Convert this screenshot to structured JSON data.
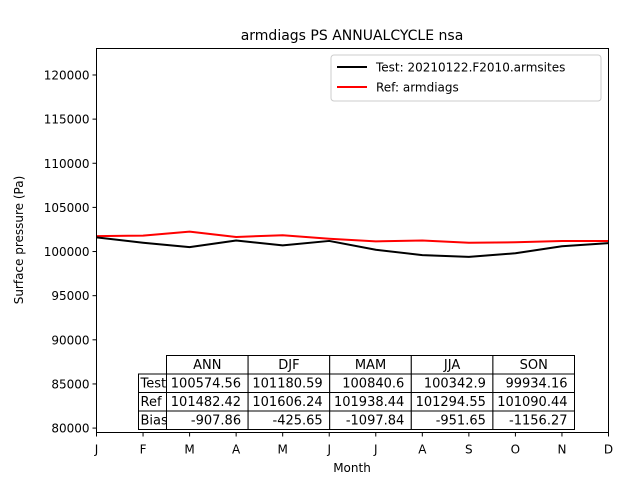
{
  "chart_data": {
    "type": "line",
    "title": "armdiags PS ANNUALCYCLE nsa",
    "xlabel": "Month",
    "ylabel": "Surface pressure (Pa)",
    "categories": [
      "J",
      "F",
      "M",
      "A",
      "M",
      "J",
      "J",
      "A",
      "S",
      "O",
      "N",
      "D"
    ],
    "ylim": [
      79500,
      123000
    ],
    "yticks": [
      80000,
      85000,
      90000,
      95000,
      100000,
      105000,
      110000,
      115000,
      120000
    ],
    "grid": false,
    "legend_position": "top-right",
    "series": [
      {
        "name": "Test: 20210122.F2010.armsites",
        "color": "#000000",
        "values": [
          101600,
          101000,
          100500,
          101250,
          100700,
          101200,
          100200,
          99600,
          99400,
          99800,
          100600,
          100950
        ]
      },
      {
        "name": "Ref: armdiags",
        "color": "#ff0000",
        "values": [
          101750,
          101800,
          102250,
          101650,
          101850,
          101450,
          101150,
          101250,
          101000,
          101050,
          101200,
          101200
        ]
      }
    ],
    "table": {
      "columns": [
        "ANN",
        "DJF",
        "MAM",
        "JJA",
        "SON"
      ],
      "rows": [
        {
          "label": "Test",
          "values": [
            "100574.56",
            "101180.59",
            "100840.6",
            "100342.9",
            "99934.16"
          ]
        },
        {
          "label": "Ref",
          "values": [
            "101482.42",
            "101606.24",
            "101938.44",
            "101294.55",
            "101090.44"
          ]
        },
        {
          "label": "Bias",
          "values": [
            "-907.86",
            "-425.65",
            "-1097.84",
            "-951.65",
            "-1156.27"
          ]
        }
      ]
    }
  }
}
